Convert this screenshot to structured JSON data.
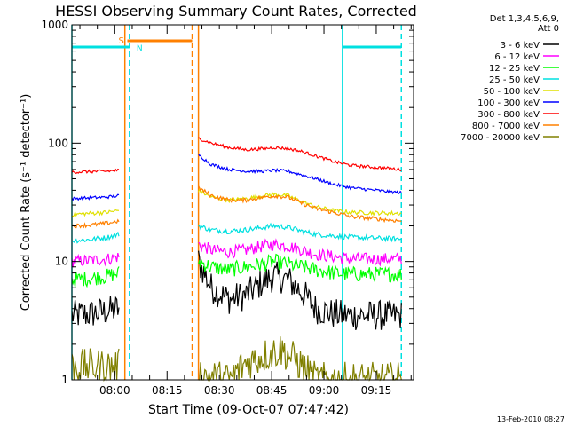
{
  "chart_data": {
    "type": "line",
    "title": "HESSI Observing Summary Count Rates, Corrected",
    "xlabel": "Start Time (09-Oct-07 07:47:42)",
    "ylabel": "Corrected Count Rate (s⁻¹ detector⁻¹)",
    "yscale": "log",
    "ylim": [
      1,
      1000
    ],
    "xlim_minutes": [
      0,
      98
    ],
    "yticks": [
      {
        "value": 1,
        "label": "1"
      },
      {
        "value": 10,
        "label": "10"
      },
      {
        "value": 100,
        "label": "100"
      },
      {
        "value": 1000,
        "label": "1000"
      }
    ],
    "xticks": [
      {
        "minute": 12.3,
        "label": "08:00"
      },
      {
        "minute": 27.3,
        "label": "08:15"
      },
      {
        "minute": 42.3,
        "label": "08:30"
      },
      {
        "minute": 57.3,
        "label": "08:45"
      },
      {
        "minute": 72.3,
        "label": "09:00"
      },
      {
        "minute": 87.3,
        "label": "09:15"
      }
    ],
    "legend_header": [
      "Det 1,3,4,5,6,9,",
      "Att 0"
    ],
    "legend_position": "right",
    "footer_date": "13-Feb-2010 08:27",
    "saa_flag": {
      "label": "S",
      "color": "#ff8000",
      "start": 15.9,
      "end": 34.5,
      "level": 650
    },
    "night_flags": [
      {
        "label": "N",
        "color": "#00e0e0",
        "start": 0,
        "end": 16.5,
        "level": 650
      },
      {
        "label": "",
        "color": "#00e0e0",
        "start": 77.6,
        "end": 94.5,
        "level": 650
      }
    ],
    "vlines": [
      {
        "minute": 0,
        "color": "#00e0e0",
        "style": "solid"
      },
      {
        "minute": 15.2,
        "color": "#ff8000",
        "style": "solid"
      },
      {
        "minute": 16.5,
        "color": "#00e0e0",
        "style": "dashed"
      },
      {
        "minute": 34.5,
        "color": "#ff8000",
        "style": "dashed"
      },
      {
        "minute": 36.3,
        "color": "#ff8000",
        "style": "solid"
      },
      {
        "minute": 77.6,
        "color": "#00e0e0",
        "style": "solid"
      },
      {
        "minute": 94.5,
        "color": "#00e0e0",
        "style": "dashed"
      }
    ],
    "series": [
      {
        "name": "3 - 6 keV",
        "color": "#000000",
        "noise": 0.3,
        "segments": [
          {
            "x": [
              0,
              5,
              10,
              13.5
            ],
            "y": [
              3.5,
              3.6,
              3.8,
              4.0
            ]
          },
          {
            "x": [
              36.3,
              40,
              45,
              50,
              55,
              58,
              62,
              66,
              70,
              75,
              80,
              94.5
            ],
            "y": [
              10,
              6,
              4.8,
              5.2,
              6.8,
              7.5,
              7.0,
              5.5,
              4.0,
              3.6,
              3.5,
              3.5
            ]
          }
        ]
      },
      {
        "name": "6 - 12 keV",
        "color": "#ff00ff",
        "noise": 0.12,
        "segments": [
          {
            "x": [
              0,
              5,
              10,
              13.5
            ],
            "y": [
              10,
              10.2,
              10.5,
              11
            ]
          },
          {
            "x": [
              36.3,
              40,
              45,
              50,
              55,
              58,
              62,
              66,
              70,
              75,
              80,
              94.5
            ],
            "y": [
              14,
              12.5,
              12,
              12.5,
              13.5,
              14,
              13.5,
              12.5,
              11.5,
              11,
              10.5,
              10.5
            ]
          }
        ]
      },
      {
        "name": "12 - 25 keV",
        "color": "#00ff00",
        "noise": 0.15,
        "segments": [
          {
            "x": [
              0,
              5,
              10,
              13.5
            ],
            "y": [
              7,
              7.2,
              7.5,
              8
            ]
          },
          {
            "x": [
              36.3,
              40,
              45,
              50,
              55,
              58,
              62,
              66,
              70,
              75,
              80,
              94.5
            ],
            "y": [
              10,
              9,
              8.5,
              9,
              9.5,
              10,
              9.5,
              9,
              8.5,
              8,
              7.8,
              7.8
            ]
          }
        ]
      },
      {
        "name": "25 - 50 keV",
        "color": "#00e0e0",
        "noise": 0.05,
        "segments": [
          {
            "x": [
              0,
              5,
              10,
              13.5
            ],
            "y": [
              15,
              15.3,
              16,
              17
            ]
          },
          {
            "x": [
              36.3,
              40,
              45,
              50,
              55,
              58,
              62,
              66,
              70,
              75,
              80,
              94.5
            ],
            "y": [
              20,
              18.5,
              18,
              18.5,
              19.5,
              20,
              19.5,
              18,
              17,
              16.5,
              16,
              15.5
            ]
          }
        ]
      },
      {
        "name": "50 - 100 keV",
        "color": "#e0e000",
        "noise": 0.04,
        "segments": [
          {
            "x": [
              0,
              5,
              10,
              13.5
            ],
            "y": [
              25,
              25.5,
              26,
              27
            ]
          },
          {
            "x": [
              36.3,
              40,
              45,
              50,
              55,
              58,
              62,
              66,
              70,
              75,
              80,
              94.5
            ],
            "y": [
              40,
              35,
              33,
              34,
              36,
              37,
              36,
              32,
              29,
              27,
              26,
              25.5
            ]
          }
        ]
      },
      {
        "name": "100 - 300 keV",
        "color": "#0000ff",
        "noise": 0.03,
        "segments": [
          {
            "x": [
              0,
              5,
              10,
              13.5
            ],
            "y": [
              34,
              34.5,
              35,
              36
            ]
          },
          {
            "x": [
              36.3,
              40,
              45,
              50,
              55,
              58,
              62,
              66,
              70,
              75,
              80,
              94.5
            ],
            "y": [
              80,
              66,
              60,
              58,
              58,
              59,
              58,
              54,
              50,
              45,
              42,
              38
            ]
          }
        ]
      },
      {
        "name": "300 - 800 keV",
        "color": "#ff0000",
        "noise": 0.03,
        "segments": [
          {
            "x": [
              0,
              5,
              10,
              13.5
            ],
            "y": [
              57,
              57.5,
              58,
              59
            ]
          },
          {
            "x": [
              36.3,
              40,
              45,
              50,
              55,
              58,
              62,
              66,
              70,
              75,
              80,
              94.5
            ],
            "y": [
              110,
              100,
              92,
              88,
              90,
              92,
              90,
              85,
              78,
              70,
              65,
              60
            ]
          }
        ]
      },
      {
        "name": "800 - 7000 keV",
        "color": "#ff8000",
        "noise": 0.04,
        "segments": [
          {
            "x": [
              0,
              5,
              10,
              13.5
            ],
            "y": [
              20,
              20.3,
              21,
              22
            ]
          },
          {
            "x": [
              36.3,
              40,
              45,
              50,
              55,
              58,
              62,
              66,
              70,
              75,
              80,
              94.5
            ],
            "y": [
              42,
              36,
              33,
              33,
              35,
              36,
              35,
              31,
              28,
              26,
              24,
              22
            ]
          }
        ]
      },
      {
        "name": "7000 - 20000 keV",
        "color": "#808000",
        "noise": 0.35,
        "segments": [
          {
            "x": [
              0,
              5,
              10,
              13.5
            ],
            "y": [
              1.3,
              1.3,
              1.3,
              1.3
            ]
          },
          {
            "x": [
              36.3,
              45,
              50,
              55,
              60,
              65,
              70,
              80,
              94.5
            ],
            "y": [
              1.1,
              1.0,
              1.4,
              1.6,
              1.8,
              1.4,
              1.0,
              1.0,
              1.0
            ]
          }
        ]
      }
    ]
  }
}
